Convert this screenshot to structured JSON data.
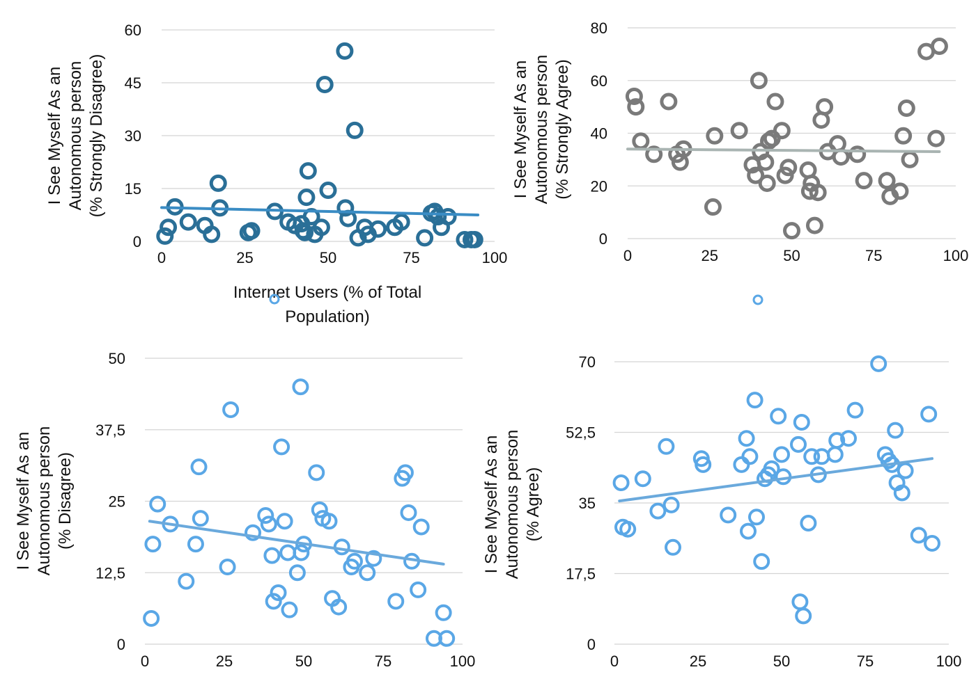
{
  "chart_data": [
    {
      "type": "scatter",
      "ylabel": "I See Myself As an Autonomous person (% Strongly Disagree)",
      "xlabel": "Internet Users (% of Total Population)",
      "xlim": [
        0,
        100
      ],
      "ylim": [
        0,
        60
      ],
      "xticks": [
        "0",
        "25",
        "50",
        "75",
        "100"
      ],
      "yticks": [
        "0",
        "15",
        "30",
        "45",
        "60"
      ],
      "grid": "horizontal",
      "colors": {
        "marker": "#2a6f97",
        "trend": "#3a8cc4"
      },
      "trendline": {
        "start": [
          0,
          9.6
        ],
        "end": [
          95,
          7.5
        ]
      },
      "points": [
        [
          1,
          1.5
        ],
        [
          2,
          4
        ],
        [
          4,
          9.8
        ],
        [
          8,
          5.5
        ],
        [
          13,
          4.5
        ],
        [
          15,
          2
        ],
        [
          17,
          16.5
        ],
        [
          17.5,
          9.5
        ],
        [
          26,
          2.5
        ],
        [
          27,
          3
        ],
        [
          34,
          8.5
        ],
        [
          38,
          5.5
        ],
        [
          40,
          4.5
        ],
        [
          42,
          5
        ],
        [
          42.5,
          3
        ],
        [
          43,
          2.5
        ],
        [
          43.5,
          12.5
        ],
        [
          44,
          20
        ],
        [
          45,
          7
        ],
        [
          46,
          2
        ],
        [
          48,
          4
        ],
        [
          49,
          44.5
        ],
        [
          50,
          14.5
        ],
        [
          55,
          54
        ],
        [
          55.2,
          9.5
        ],
        [
          56,
          6.5
        ],
        [
          58,
          31.5
        ],
        [
          59,
          1
        ],
        [
          61,
          4
        ],
        [
          62,
          2
        ],
        [
          65,
          3.5
        ],
        [
          70,
          4
        ],
        [
          72,
          5.5
        ],
        [
          79,
          1
        ],
        [
          81,
          8
        ],
        [
          82,
          8.5
        ],
        [
          83,
          7
        ],
        [
          84,
          4
        ],
        [
          86,
          7
        ],
        [
          91,
          0.5
        ],
        [
          93,
          0.5
        ],
        [
          94,
          0.5
        ]
      ]
    },
    {
      "type": "scatter",
      "ylabel": "I See Myself As an Autonomous person (% Strongly Agree)",
      "xlabel": "",
      "xlim": [
        0,
        100
      ],
      "ylim": [
        0,
        80
      ],
      "xticks": [
        "0",
        "25",
        "50",
        "75",
        "100"
      ],
      "yticks": [
        "0",
        "20",
        "40",
        "60",
        "80"
      ],
      "grid": "horizontal",
      "colors": {
        "marker": "#7a7a7a",
        "trend": "#a9b4b2"
      },
      "trendline": {
        "start": [
          0,
          34
        ],
        "end": [
          95,
          33
        ]
      },
      "points": [
        [
          2,
          54
        ],
        [
          2.5,
          50
        ],
        [
          4,
          37
        ],
        [
          8,
          32
        ],
        [
          12.5,
          52
        ],
        [
          15,
          32
        ],
        [
          16,
          29
        ],
        [
          17,
          34
        ],
        [
          26,
          12
        ],
        [
          26.5,
          39
        ],
        [
          34,
          41
        ],
        [
          38,
          28
        ],
        [
          39,
          24
        ],
        [
          40,
          60
        ],
        [
          40.5,
          33
        ],
        [
          42,
          29
        ],
        [
          42.5,
          21
        ],
        [
          43,
          37
        ],
        [
          44,
          38
        ],
        [
          45,
          52
        ],
        [
          47,
          41
        ],
        [
          48,
          24
        ],
        [
          49,
          27
        ],
        [
          50,
          3
        ],
        [
          55,
          26
        ],
        [
          55.5,
          18
        ],
        [
          56,
          21
        ],
        [
          57,
          5
        ],
        [
          58,
          17.5
        ],
        [
          59,
          45
        ],
        [
          60,
          50
        ],
        [
          61,
          33
        ],
        [
          64,
          36
        ],
        [
          65,
          31
        ],
        [
          70,
          32
        ],
        [
          72,
          22
        ],
        [
          79,
          22
        ],
        [
          80,
          16
        ],
        [
          83,
          18
        ],
        [
          84,
          39
        ],
        [
          85,
          49.5
        ],
        [
          86,
          30
        ],
        [
          91,
          71
        ],
        [
          94,
          38
        ],
        [
          95,
          73
        ]
      ]
    },
    {
      "type": "scatter",
      "ylabel": "I See Myself As an Autonomous person (% Disagree)",
      "xlabel": "",
      "xlim": [
        0,
        100
      ],
      "ylim": [
        0,
        50
      ],
      "xticks": [
        "0",
        "25",
        "50",
        "75",
        "100"
      ],
      "yticks": [
        "0",
        "12,5",
        "25",
        "37,5",
        "50"
      ],
      "grid": "horizontal",
      "colors": {
        "marker": "#5aa7e6",
        "trend": "#6aa9dc"
      },
      "trendline": {
        "start": [
          1.5,
          21.5
        ],
        "end": [
          94,
          14
        ]
      },
      "points": [
        [
          2,
          4.5
        ],
        [
          2.5,
          17.5
        ],
        [
          4,
          24.5
        ],
        [
          8,
          21
        ],
        [
          13,
          11
        ],
        [
          16,
          17.5
        ],
        [
          17,
          31
        ],
        [
          17.5,
          22
        ],
        [
          26,
          13.5
        ],
        [
          27,
          41
        ],
        [
          34,
          19.5
        ],
        [
          38,
          22.5
        ],
        [
          39,
          21
        ],
        [
          40,
          15.5
        ],
        [
          40.5,
          7.5
        ],
        [
          42,
          9
        ],
        [
          43,
          34.5
        ],
        [
          44,
          21.5
        ],
        [
          45,
          16
        ],
        [
          45.5,
          6
        ],
        [
          48,
          12.5
        ],
        [
          49,
          45
        ],
        [
          49.2,
          16
        ],
        [
          50,
          17.5
        ],
        [
          54,
          30
        ],
        [
          55,
          23.5
        ],
        [
          56,
          22
        ],
        [
          58,
          21.5
        ],
        [
          59,
          8
        ],
        [
          61,
          6.5
        ],
        [
          62,
          17
        ],
        [
          65,
          13.5
        ],
        [
          66,
          14.5
        ],
        [
          70,
          12.5
        ],
        [
          72,
          15
        ],
        [
          79,
          7.5
        ],
        [
          81,
          29
        ],
        [
          82,
          30
        ],
        [
          83,
          23
        ],
        [
          84,
          14.5
        ],
        [
          86,
          9.5
        ],
        [
          87,
          20.5
        ],
        [
          91,
          1
        ],
        [
          94,
          5.5
        ],
        [
          95,
          1
        ]
      ]
    },
    {
      "type": "scatter",
      "ylabel": "I See Myself As an Autonomous person (% Agree)",
      "xlabel": "",
      "xlim": [
        0,
        100
      ],
      "ylim": [
        0,
        70
      ],
      "xticks": [
        "0",
        "25",
        "50",
        "75",
        "100"
      ],
      "yticks": [
        "0",
        "17,5",
        "35",
        "52,5",
        "70"
      ],
      "grid": "horizontal",
      "colors": {
        "marker": "#5aa7e6",
        "trend": "#6aa9dc"
      },
      "trendline": {
        "start": [
          1.5,
          35.5
        ],
        "end": [
          95,
          46
        ]
      },
      "points": [
        [
          2,
          40
        ],
        [
          2.5,
          29
        ],
        [
          4,
          28.5
        ],
        [
          8.5,
          41
        ],
        [
          13,
          33
        ],
        [
          15.5,
          49
        ],
        [
          17,
          34.5
        ],
        [
          17.5,
          24
        ],
        [
          26,
          46
        ],
        [
          26.5,
          44.5
        ],
        [
          34,
          32
        ],
        [
          38,
          44.5
        ],
        [
          39.5,
          51
        ],
        [
          40,
          28
        ],
        [
          40.5,
          46.5
        ],
        [
          42,
          60.5
        ],
        [
          42.5,
          31.5
        ],
        [
          44,
          20.5
        ],
        [
          45,
          41
        ],
        [
          46,
          42
        ],
        [
          47,
          43.5
        ],
        [
          49,
          56.5
        ],
        [
          50,
          47
        ],
        [
          50.5,
          41.5
        ],
        [
          55,
          49.5
        ],
        [
          55.5,
          10.5
        ],
        [
          56,
          55
        ],
        [
          56.5,
          7
        ],
        [
          58,
          30
        ],
        [
          59,
          46.5
        ],
        [
          61,
          42
        ],
        [
          62,
          46.5
        ],
        [
          66,
          47
        ],
        [
          66.5,
          50.5
        ],
        [
          70,
          51
        ],
        [
          72,
          58
        ],
        [
          79,
          69.5
        ],
        [
          81,
          47
        ],
        [
          82,
          45.5
        ],
        [
          83,
          44.5
        ],
        [
          84,
          53
        ],
        [
          84.5,
          40
        ],
        [
          86,
          37.5
        ],
        [
          87,
          43
        ],
        [
          91,
          27
        ],
        [
          94,
          57
        ],
        [
          95,
          25
        ]
      ]
    }
  ]
}
